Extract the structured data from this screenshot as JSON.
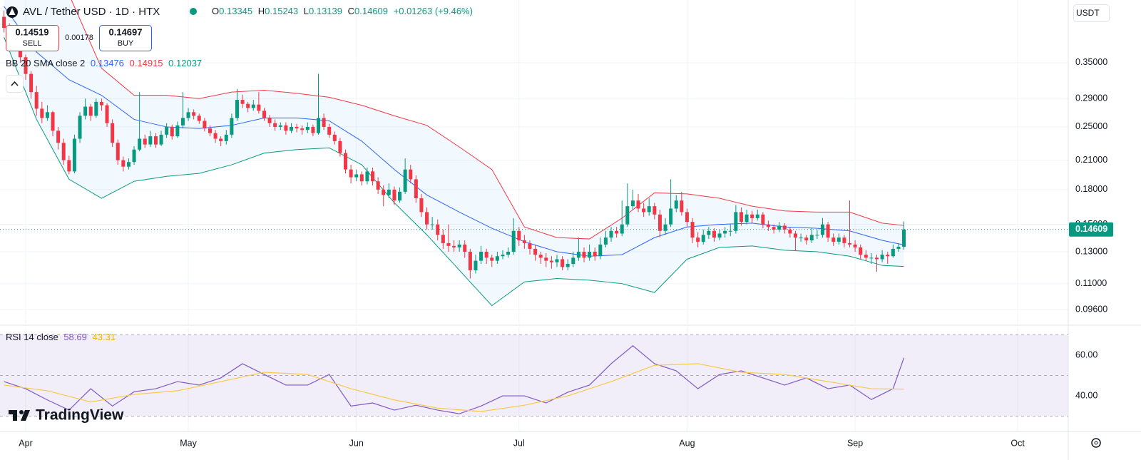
{
  "header": {
    "symbol": "AVL / Tether USD · 1D · HTX",
    "change": "+0.01263 (+9.46%)",
    "ohlc_labels": [
      "O",
      "H",
      "L",
      "C"
    ],
    "sell_price": "0.14519",
    "sell": "SELL",
    "spread": "0.00178",
    "buy_price": "0.14697",
    "buy": "BUY",
    "currency": "USDT",
    "logo": "TradingView"
  },
  "chart_data": [
    {
      "type": "candlestick",
      "up_color": "#089981",
      "down_color": "#f23645",
      "log_scale": true,
      "grid": true,
      "open": [
        0.445,
        0.42,
        0.395,
        0.405,
        0.36,
        0.33,
        0.3,
        0.275,
        0.262,
        0.27,
        0.245,
        0.23,
        0.21,
        0.198,
        0.235,
        0.265,
        0.278,
        0.265,
        0.285,
        0.28,
        0.255,
        0.23,
        0.21,
        0.203,
        0.208,
        0.222,
        0.235,
        0.228,
        0.238,
        0.228,
        0.24,
        0.25,
        0.238,
        0.252,
        0.262,
        0.27,
        0.265,
        0.258,
        0.248,
        0.242,
        0.235,
        0.232,
        0.24,
        0.262,
        0.288,
        0.282,
        0.276,
        0.281,
        0.272,
        0.262,
        0.255,
        0.25,
        0.252,
        0.245,
        0.25,
        0.248,
        0.246,
        0.25,
        0.242,
        0.262,
        0.25,
        0.24,
        0.232,
        0.218,
        0.2,
        0.192,
        0.195,
        0.188,
        0.198,
        0.188,
        0.18,
        0.175,
        0.18,
        0.17,
        0.178,
        0.2,
        0.19,
        0.172,
        0.16,
        0.15,
        0.15,
        0.142,
        0.136,
        0.134,
        0.133,
        0.135,
        0.13,
        0.118,
        0.124,
        0.13,
        0.126,
        0.124,
        0.127,
        0.128,
        0.13,
        0.145,
        0.138,
        0.136,
        0.132,
        0.128,
        0.126,
        0.124,
        0.123,
        0.125,
        0.12,
        0.122,
        0.126,
        0.13,
        0.126,
        0.13,
        0.127,
        0.135,
        0.14,
        0.145,
        0.143,
        0.15,
        0.165,
        0.17,
        0.163,
        0.16,
        0.165,
        0.158,
        0.145,
        0.15,
        0.163,
        0.17,
        0.16,
        0.152,
        0.14,
        0.137,
        0.142,
        0.145,
        0.14,
        0.143,
        0.145,
        0.145,
        0.16,
        0.152,
        0.158,
        0.155,
        0.158,
        0.15,
        0.148,
        0.146,
        0.149,
        0.146,
        0.143,
        0.14,
        0.14,
        0.138,
        0.142,
        0.142,
        0.15,
        0.14,
        0.137,
        0.14,
        0.136,
        0.135,
        0.133,
        0.128,
        0.126,
        0.126,
        0.125,
        0.128,
        0.127,
        0.132,
        0.13345
      ],
      "high": [
        0.46,
        0.43,
        0.415,
        0.41,
        0.365,
        0.335,
        0.31,
        0.285,
        0.28,
        0.272,
        0.25,
        0.235,
        0.215,
        0.24,
        0.27,
        0.29,
        0.282,
        0.29,
        0.29,
        0.283,
        0.26,
        0.234,
        0.214,
        0.212,
        0.226,
        0.3,
        0.24,
        0.245,
        0.242,
        0.245,
        0.255,
        0.253,
        0.257,
        0.3,
        0.276,
        0.274,
        0.268,
        0.262,
        0.252,
        0.246,
        0.238,
        0.246,
        0.268,
        0.305,
        0.296,
        0.285,
        0.288,
        0.3,
        0.276,
        0.266,
        0.26,
        0.256,
        0.256,
        0.255,
        0.254,
        0.252,
        0.256,
        0.253,
        0.33,
        0.268,
        0.254,
        0.244,
        0.236,
        0.222,
        0.205,
        0.2,
        0.198,
        0.202,
        0.202,
        0.192,
        0.184,
        0.186,
        0.183,
        0.182,
        0.212,
        0.205,
        0.194,
        0.176,
        0.164,
        0.156,
        0.154,
        0.146,
        0.15,
        0.138,
        0.138,
        0.138,
        0.132,
        0.128,
        0.134,
        0.132,
        0.128,
        0.13,
        0.131,
        0.133,
        0.155,
        0.148,
        0.142,
        0.138,
        0.135,
        0.13,
        0.129,
        0.127,
        0.128,
        0.127,
        0.125,
        0.13,
        0.14,
        0.133,
        0.135,
        0.133,
        0.14,
        0.145,
        0.148,
        0.148,
        0.17,
        0.186,
        0.18,
        0.176,
        0.168,
        0.172,
        0.168,
        0.162,
        0.155,
        0.19,
        0.175,
        0.178,
        0.163,
        0.155,
        0.144,
        0.146,
        0.148,
        0.147,
        0.146,
        0.148,
        0.15,
        0.166,
        0.164,
        0.162,
        0.161,
        0.162,
        0.16,
        0.153,
        0.15,
        0.152,
        0.151,
        0.148,
        0.145,
        0.143,
        0.142,
        0.147,
        0.146,
        0.155,
        0.152,
        0.143,
        0.143,
        0.142,
        0.17,
        0.138,
        0.135,
        0.131,
        0.129,
        0.128,
        0.131,
        0.13,
        0.135,
        0.136,
        0.15243
      ],
      "low": [
        0.41,
        0.385,
        0.39,
        0.35,
        0.32,
        0.29,
        0.265,
        0.255,
        0.258,
        0.238,
        0.222,
        0.205,
        0.195,
        0.196,
        0.23,
        0.26,
        0.258,
        0.262,
        0.272,
        0.25,
        0.225,
        0.205,
        0.198,
        0.2,
        0.205,
        0.22,
        0.224,
        0.225,
        0.224,
        0.226,
        0.236,
        0.234,
        0.236,
        0.248,
        0.258,
        0.26,
        0.254,
        0.244,
        0.238,
        0.23,
        0.226,
        0.228,
        0.236,
        0.258,
        0.276,
        0.27,
        0.272,
        0.268,
        0.258,
        0.25,
        0.245,
        0.246,
        0.24,
        0.242,
        0.243,
        0.24,
        0.242,
        0.238,
        0.24,
        0.246,
        0.236,
        0.228,
        0.214,
        0.196,
        0.186,
        0.188,
        0.184,
        0.185,
        0.184,
        0.176,
        0.165,
        0.172,
        0.166,
        0.168,
        0.176,
        0.186,
        0.168,
        0.156,
        0.146,
        0.146,
        0.138,
        0.132,
        0.13,
        0.13,
        0.13,
        0.126,
        0.113,
        0.116,
        0.122,
        0.122,
        0.12,
        0.122,
        0.125,
        0.126,
        0.128,
        0.134,
        0.132,
        0.128,
        0.124,
        0.122,
        0.12,
        0.119,
        0.12,
        0.118,
        0.118,
        0.12,
        0.124,
        0.123,
        0.124,
        0.124,
        0.125,
        0.133,
        0.137,
        0.14,
        0.141,
        0.148,
        0.162,
        0.16,
        0.156,
        0.157,
        0.154,
        0.14,
        0.142,
        0.148,
        0.16,
        0.157,
        0.148,
        0.136,
        0.133,
        0.135,
        0.139,
        0.137,
        0.138,
        0.14,
        0.141,
        0.143,
        0.149,
        0.15,
        0.151,
        0.153,
        0.147,
        0.145,
        0.143,
        0.144,
        0.143,
        0.14,
        0.131,
        0.137,
        0.135,
        0.136,
        0.139,
        0.14,
        0.137,
        0.134,
        0.135,
        0.133,
        0.133,
        0.13,
        0.125,
        0.124,
        0.122,
        0.117,
        0.123,
        0.122,
        0.126,
        0.13,
        0.13139
      ],
      "close": [
        0.42,
        0.395,
        0.405,
        0.36,
        0.33,
        0.3,
        0.275,
        0.262,
        0.27,
        0.245,
        0.23,
        0.21,
        0.198,
        0.235,
        0.265,
        0.278,
        0.265,
        0.285,
        0.28,
        0.255,
        0.23,
        0.21,
        0.203,
        0.208,
        0.222,
        0.235,
        0.228,
        0.238,
        0.228,
        0.24,
        0.25,
        0.238,
        0.252,
        0.262,
        0.27,
        0.265,
        0.258,
        0.248,
        0.242,
        0.235,
        0.232,
        0.24,
        0.262,
        0.288,
        0.282,
        0.276,
        0.281,
        0.272,
        0.262,
        0.255,
        0.25,
        0.252,
        0.245,
        0.25,
        0.248,
        0.246,
        0.25,
        0.242,
        0.262,
        0.25,
        0.24,
        0.232,
        0.218,
        0.2,
        0.192,
        0.195,
        0.188,
        0.198,
        0.188,
        0.18,
        0.175,
        0.18,
        0.17,
        0.178,
        0.2,
        0.19,
        0.172,
        0.16,
        0.15,
        0.15,
        0.142,
        0.136,
        0.134,
        0.133,
        0.135,
        0.13,
        0.118,
        0.124,
        0.13,
        0.126,
        0.124,
        0.127,
        0.128,
        0.13,
        0.145,
        0.138,
        0.136,
        0.132,
        0.128,
        0.126,
        0.124,
        0.123,
        0.125,
        0.12,
        0.122,
        0.126,
        0.13,
        0.126,
        0.13,
        0.127,
        0.135,
        0.14,
        0.145,
        0.143,
        0.15,
        0.165,
        0.17,
        0.163,
        0.16,
        0.165,
        0.158,
        0.145,
        0.15,
        0.163,
        0.17,
        0.16,
        0.152,
        0.14,
        0.137,
        0.142,
        0.145,
        0.14,
        0.143,
        0.145,
        0.145,
        0.16,
        0.152,
        0.158,
        0.155,
        0.158,
        0.15,
        0.148,
        0.146,
        0.149,
        0.146,
        0.143,
        0.14,
        0.14,
        0.138,
        0.142,
        0.142,
        0.15,
        0.14,
        0.137,
        0.14,
        0.136,
        0.135,
        0.133,
        0.128,
        0.126,
        0.126,
        0.125,
        0.128,
        0.127,
        0.132,
        0.13346,
        0.14609
      ],
      "xlim": [
        -0.737,
        196.32
      ],
      "xticks": [
        {
          "value": 4,
          "label": "Apr"
        },
        {
          "value": 34,
          "label": "May"
        },
        {
          "value": 65,
          "label": "Jun"
        },
        {
          "value": 95,
          "label": "Jul"
        },
        {
          "value": 126,
          "label": "Aug"
        },
        {
          "value": 157,
          "label": "Sep"
        },
        {
          "value": 187,
          "label": "Oct"
        }
      ],
      "ylim": [
        0.0888,
        0.486
      ],
      "yticks": [
        {
          "value": 0.35,
          "label": "0.35000"
        },
        {
          "value": 0.29,
          "label": "0.29000"
        },
        {
          "value": 0.25,
          "label": "0.25000"
        },
        {
          "value": 0.21,
          "label": "0.21000"
        },
        {
          "value": 0.18,
          "label": "0.18000"
        },
        {
          "value": 0.15,
          "label": "0.15000"
        },
        {
          "value": 0.13,
          "label": "0.13000"
        },
        {
          "value": 0.11,
          "label": "0.11000"
        },
        {
          "value": 0.096,
          "label": "0.09600"
        }
      ],
      "indicator": {
        "name": "BB 20 SMA close 2",
        "fill": "#2196f3",
        "x": [
          0,
          6,
          12,
          18,
          24,
          30,
          36,
          42,
          48,
          54,
          60,
          66,
          72,
          78,
          84,
          90,
          96,
          102,
          108,
          114,
          120,
          126,
          132,
          138,
          144,
          150,
          156,
          162,
          166
        ],
        "series": [
          {
            "color": "#2962ff",
            "values": [
              0.47,
              0.37,
              0.32,
              0.295,
              0.26,
              0.25,
              0.248,
              0.252,
              0.262,
              0.262,
              0.258,
              0.232,
              0.2,
              0.175,
              0.16,
              0.147,
              0.137,
              0.13,
              0.127,
              0.128,
              0.14,
              0.148,
              0.15,
              0.151,
              0.148,
              0.147,
              0.145,
              0.138,
              0.13476
            ]
          },
          {
            "color": "#f23645",
            "values": [
              0.6,
              0.52,
              0.5,
              0.34,
              0.295,
              0.295,
              0.29,
              0.3,
              0.303,
              0.298,
              0.292,
              0.28,
              0.265,
              0.252,
              0.225,
              0.2,
              0.148,
              0.14,
              0.139,
              0.155,
              0.177,
              0.176,
              0.172,
              0.165,
              0.161,
              0.16,
              0.16,
              0.151,
              0.14915
            ]
          },
          {
            "color": "#089981",
            "values": [
              0.4,
              0.26,
              0.19,
              0.172,
              0.188,
              0.193,
              0.196,
              0.205,
              0.218,
              0.222,
              0.224,
              0.205,
              0.168,
              0.142,
              0.118,
              0.098,
              0.111,
              0.113,
              0.112,
              0.11,
              0.105,
              0.125,
              0.133,
              0.134,
              0.131,
              0.13,
              0.127,
              0.121,
              0.12037
            ]
          }
        ]
      }
    },
    {
      "type": "line",
      "name": "RSI 14 close",
      "band_color": "#7e57c2",
      "ylim": [
        22.5,
        74
      ],
      "yticks": [
        {
          "value": 60,
          "label": "60.00"
        },
        {
          "value": 40,
          "label": "40.00"
        }
      ],
      "levels": [
        70,
        50,
        30
      ],
      "series": [
        {
          "color": "#7e57c2",
          "x": [
            0,
            4,
            8,
            12,
            16,
            20,
            24,
            28,
            32,
            36,
            40,
            44,
            48,
            52,
            56,
            60,
            64,
            68,
            72,
            76,
            80,
            84,
            88,
            92,
            96,
            100,
            104,
            108,
            112,
            116,
            120,
            124,
            128,
            132,
            136,
            140,
            144,
            148,
            152,
            156,
            160,
            164,
            166
          ],
          "values": [
            47,
            43.5,
            38,
            33,
            43.5,
            35,
            42,
            43.5,
            47,
            45.3,
            48.8,
            55.8,
            50.5,
            45.3,
            45.3,
            50.5,
            35,
            36.5,
            33,
            35.4,
            33,
            31.2,
            35,
            40,
            40,
            36.5,
            41.8,
            45.3,
            55.8,
            64.6,
            55.8,
            52.3,
            43.5,
            50.5,
            52.3,
            48.8,
            45.3,
            48.8,
            43.5,
            45.3,
            38.2,
            43.5,
            58.69
          ]
        },
        {
          "color": "#f7c948",
          "x": [
            0,
            8,
            16,
            24,
            32,
            40,
            48,
            56,
            64,
            72,
            80,
            88,
            96,
            104,
            112,
            120,
            128,
            136,
            144,
            152,
            160,
            166
          ],
          "values": [
            45.3,
            42.5,
            37,
            40.7,
            42.5,
            47,
            51.6,
            50.5,
            43.5,
            38,
            34,
            32.3,
            35.4,
            40,
            47,
            55,
            55.8,
            51.6,
            50.5,
            47,
            43.5,
            43.31
          ]
        }
      ]
    }
  ]
}
